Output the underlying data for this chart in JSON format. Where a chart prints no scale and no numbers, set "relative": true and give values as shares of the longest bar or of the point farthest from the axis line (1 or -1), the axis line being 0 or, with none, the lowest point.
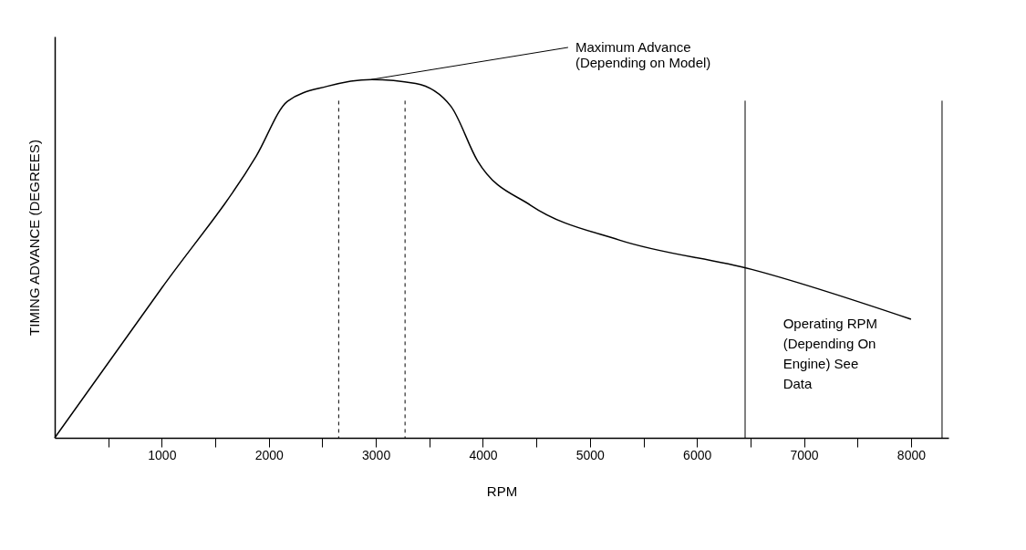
{
  "chart_data": {
    "type": "line",
    "relative": true,
    "xlabel": "RPM",
    "ylabel": "TIMING ADVANCE (DEGREES)",
    "x": [
      0,
      1000,
      1884,
      2174,
      2545,
      2959,
      3372,
      3702,
      3950,
      4446,
      5273,
      6512,
      8000
    ],
    "series": [
      {
        "color": "#000000",
        "values": [
          0,
          0.418,
          0.787,
          0.939,
          0.981,
          1.0,
          0.989,
          0.925,
          0.773,
          0.649,
          0.552,
          0.47,
          0.331
        ]
      }
    ],
    "xlim": [
      0,
      8350
    ],
    "xticks": [
      {
        "value": 500,
        "label": null
      },
      1000,
      {
        "value": 1500,
        "label": null
      },
      2000,
      {
        "value": 2500,
        "label": null
      },
      3000,
      {
        "value": 3500,
        "label": null
      },
      4000,
      {
        "value": 4500,
        "label": null
      },
      5000,
      {
        "value": 5500,
        "label": null
      },
      6000,
      {
        "value": 6500,
        "label": null
      },
      7000,
      {
        "value": 7500,
        "label": null
      },
      8000
    ],
    "ref_lines": [
      {
        "axis": "x",
        "value": 2653,
        "line_style": "dashed",
        "color": "#000000"
      },
      {
        "axis": "x",
        "value": 3273,
        "line_style": "dashed",
        "color": "#000000"
      },
      {
        "axis": "x",
        "value": 6450,
        "line_style": "solid",
        "color": "#000000"
      },
      {
        "axis": "x",
        "value": 8290,
        "line_style": "solid",
        "color": "#000000"
      }
    ],
    "annotations": [
      {
        "text": "Maximum Advance\n(Depending on Model)",
        "x": 2959,
        "y": 1.0
      },
      "Operating RPM\n(Depending On\nEngine) See\nData"
    ],
    "grid": false,
    "marker": "none",
    "line_style": "solid"
  }
}
